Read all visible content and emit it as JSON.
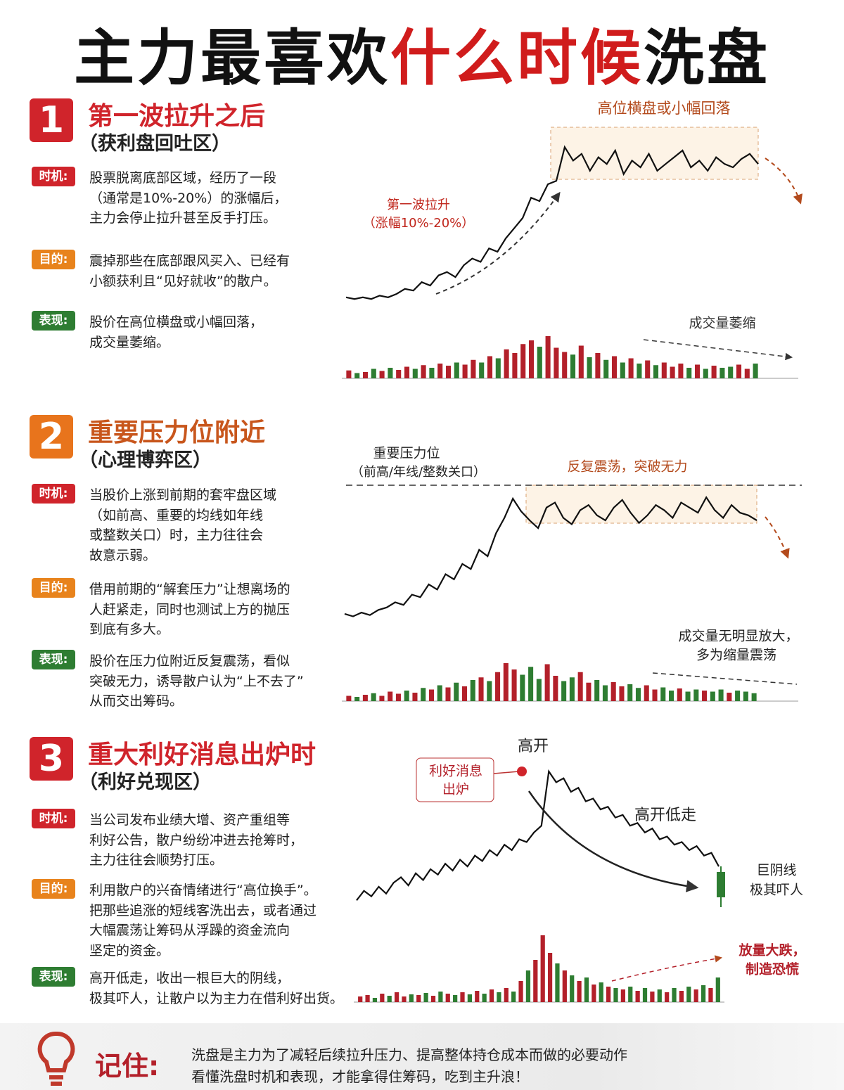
{
  "header": {
    "title_a": "主力最喜欢",
    "title_b": "什么时候",
    "title_c": "洗盘"
  },
  "colors": {
    "up": "#b3202a",
    "down": "#2e7d32",
    "line": "#111111"
  },
  "sections": [
    {
      "number": "1",
      "title": "第一波拉升之后",
      "subtitle": "（获利盘回吐区）",
      "items": [
        {
          "tag": "时机:",
          "lines": [
            "股票脱离底部区域，经历了一段",
            "（通常是10%-20%）的涨幅后，",
            "主力会停止拉升甚至反手打压。"
          ]
        },
        {
          "tag": "目的:",
          "lines": [
            "震掉那些在底部跟风买入、已经有",
            "小额获利且“见好就收”的散户。"
          ]
        },
        {
          "tag": "表现:",
          "lines": [
            "股价在高位横盘或小幅回落，",
            "成交量萎缩。"
          ]
        }
      ],
      "chart": {
        "notes": [
          "高位横盘或小幅回落",
          "第一波拉升",
          "（涨幅10%-20%）",
          "成交量萎缩"
        ],
        "price": [
          3,
          2,
          3,
          2,
          4,
          3,
          5,
          8,
          7,
          12,
          10,
          16,
          18,
          15,
          22,
          26,
          24,
          32,
          30,
          38,
          44,
          50,
          62,
          60,
          70,
          72,
          92,
          84,
          88,
          78,
          86,
          82,
          90,
          76,
          84,
          80,
          88,
          78,
          82,
          86,
          90,
          80,
          84,
          78,
          86,
          82,
          80,
          85,
          88,
          82
        ],
        "volume": [
          15,
          10,
          12,
          18,
          14,
          20,
          16,
          22,
          18,
          25,
          20,
          28,
          24,
          30,
          26,
          35,
          30,
          42,
          38,
          55,
          48,
          65,
          72,
          60,
          80,
          58,
          50,
          45,
          62,
          40,
          48,
          35,
          42,
          30,
          38,
          28,
          34,
          25,
          30,
          22,
          28,
          20,
          26,
          18,
          24,
          20,
          22,
          26,
          18,
          28
        ]
      }
    },
    {
      "number": "2",
      "title": "重要压力位附近",
      "subtitle": "（心理博弈区）",
      "items": [
        {
          "tag": "时机:",
          "lines": [
            "当股价上涨到前期的套牢盘区域",
            "（如前高、重要的均线如年线",
            "或整数关口）时，主力往往会",
            "故意示弱。"
          ]
        },
        {
          "tag": "目的:",
          "lines": [
            "借用前期的“解套压力”让想离场的",
            "人赶紧走，同时也测试上方的抛压",
            "到底有多大。"
          ]
        },
        {
          "tag": "表现:",
          "lines": [
            "股价在压力位附近反复震荡，看似",
            "突破无力，诱导散户认为“上不去了”",
            "从而交出筹码。"
          ]
        }
      ],
      "chart": {
        "notes": [
          "重要压力位",
          "（前高/年线/整数关口）",
          "反复震荡，突破无力",
          "成交量无明显放大，",
          "多为缩量震荡"
        ],
        "price": [
          5,
          3,
          6,
          4,
          8,
          10,
          14,
          12,
          20,
          18,
          28,
          24,
          36,
          32,
          44,
          40,
          55,
          50,
          68,
          80,
          95,
          85,
          78,
          72,
          88,
          92,
          80,
          75,
          86,
          90,
          82,
          78,
          88,
          94,
          84,
          76,
          82,
          90,
          86,
          80,
          92,
          88,
          84,
          96,
          86,
          80,
          90,
          84,
          82,
          78
        ],
        "volume": [
          10,
          8,
          12,
          15,
          10,
          18,
          14,
          20,
          16,
          25,
          22,
          30,
          26,
          35,
          28,
          40,
          45,
          38,
          55,
          72,
          60,
          50,
          65,
          42,
          70,
          48,
          38,
          45,
          55,
          35,
          40,
          30,
          36,
          28,
          32,
          25,
          30,
          22,
          26,
          20,
          24,
          18,
          22,
          20,
          18,
          22,
          16,
          20,
          18,
          15
        ]
      }
    },
    {
      "number": "3",
      "title": "重大利好消息出炉时",
      "subtitle": "（利好兑现区）",
      "items": [
        {
          "tag": "时机:",
          "lines": [
            "当公司发布业绩大增、资产重组等",
            "利好公告，散户纷纷冲进去抢筹时，",
            "主力往往会顺势打压。"
          ]
        },
        {
          "tag": "目的:",
          "lines": [
            "利用散户的兴奋情绪进行“高位换手”。",
            "把那些追涨的短线客洗出去，或者通过",
            "大幅震荡让筹码从浮躁的资金流向",
            "坚定的资金。"
          ]
        },
        {
          "tag": "表现:",
          "lines": [
            "高开低走，收出一根巨大的阴线，",
            "极其吓人，让散户以为主力在借利好出货。"
          ]
        }
      ],
      "chart": {
        "notes": [
          "高开",
          "利好消息",
          "出炉",
          "高开低走",
          "巨阴线",
          "极其吓人",
          "放量大跌，",
          "制造恐慌"
        ],
        "price": [
          5,
          12,
          8,
          15,
          10,
          18,
          22,
          16,
          25,
          20,
          28,
          24,
          32,
          27,
          35,
          30,
          38,
          34,
          42,
          38,
          46,
          42,
          50,
          48,
          55,
          60,
          100,
          92,
          95,
          85,
          88,
          78,
          80,
          72,
          74,
          66,
          68,
          60,
          62,
          55,
          58,
          50,
          52,
          46,
          48,
          42,
          45,
          38,
          40,
          30
        ],
        "volume": [
          8,
          10,
          6,
          12,
          9,
          14,
          8,
          11,
          10,
          13,
          9,
          15,
          12,
          10,
          14,
          11,
          16,
          12,
          18,
          14,
          20,
          15,
          30,
          45,
          60,
          95,
          70,
          55,
          45,
          38,
          30,
          35,
          25,
          28,
          22,
          20,
          18,
          22,
          16,
          20,
          15,
          18,
          14,
          20,
          16,
          22,
          18,
          24,
          20,
          35
        ]
      }
    }
  ],
  "footer": {
    "label": "记住:",
    "lines": [
      "洗盘是主力为了减轻后续拉升压力、提高整体持仓成本而做的必要动作",
      "看懂洗盘时机和表现，才能拿得住筹码，吃到主升浪！"
    ]
  }
}
